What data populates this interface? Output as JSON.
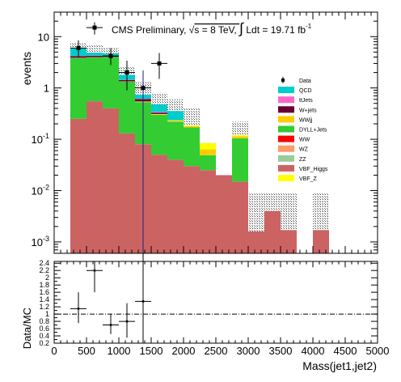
{
  "chart_data": [
    {
      "type": "bar",
      "stacked": true,
      "yscale": "log",
      "title": "CMS Preliminary, √s = 8 TeV, ∫ Ldt = 19.71 fb⁻¹",
      "title_parts": {
        "prefix": "CMS Preliminary, ",
        "sqrt": "√",
        "s_eq": "s = 8 TeV, ",
        "integral": "∫",
        "ldt": " Ldt = 19.71 fb",
        "exp": "-1"
      },
      "ylabel": "events",
      "xlim": [
        0,
        5000
      ],
      "ylim": [
        0.0006,
        30
      ],
      "y_ticks": [
        {
          "value": 0.001,
          "base": "10",
          "exp": "-3"
        },
        {
          "value": 0.01,
          "base": "10",
          "exp": "-2"
        },
        {
          "value": 0.1,
          "base": "10",
          "exp": "-1"
        },
        {
          "value": 1,
          "base": "1",
          "exp": ""
        },
        {
          "value": 10,
          "base": "10",
          "exp": ""
        }
      ],
      "bins": [
        [
          250,
          500
        ],
        [
          500,
          750
        ],
        [
          750,
          1000
        ],
        [
          1000,
          1250
        ],
        [
          1250,
          1500
        ],
        [
          1500,
          1750
        ],
        [
          1750,
          2000
        ],
        [
          2000,
          2250
        ],
        [
          2250,
          2500
        ],
        [
          2500,
          2750
        ],
        [
          2750,
          3000
        ],
        [
          3000,
          3250
        ],
        [
          3250,
          3500
        ],
        [
          3500,
          3750
        ],
        [
          3750,
          4000
        ],
        [
          4000,
          4250
        ]
      ],
      "series": [
        {
          "name": "VBF_Higgs",
          "color": "#cc6363",
          "values": [
            0.25,
            0.55,
            0.4,
            0.13,
            0.08,
            0.05,
            0.04,
            0.03,
            0.025,
            0.02,
            0.015,
            0.0016,
            0.004,
            0.0017,
            0,
            0.0017
          ]
        },
        {
          "name": "DYLL+Jets",
          "color": "#33cc33",
          "values": [
            3.6,
            3.4,
            3.6,
            1.2,
            0.45,
            0.25,
            0.18,
            0.14,
            0.024,
            0.0,
            0.09,
            0,
            0,
            0,
            0,
            0
          ]
        },
        {
          "name": "WWjj",
          "color": "#ffcc00",
          "values": [
            0.02,
            0.02,
            0.02,
            0.01,
            0.01,
            0.005,
            0.01,
            0.01,
            0.015,
            0,
            0.01,
            0,
            0,
            0,
            0,
            0
          ]
        },
        {
          "name": "VBF_Z",
          "color": "#ffff00",
          "values": [
            0.01,
            0.01,
            0.01,
            0.005,
            0.005,
            0.005,
            0.005,
            0.005,
            0.02,
            0,
            0.005,
            0,
            0,
            0,
            0,
            0
          ]
        },
        {
          "name": "W+jets",
          "color": "#660033",
          "values": [
            0.3,
            0.25,
            0.15,
            0.08,
            0.06,
            0.02,
            0,
            0,
            0,
            0,
            0,
            0,
            0,
            0,
            0,
            0
          ]
        },
        {
          "name": "ttJets",
          "color": "#ff66cc",
          "values": [
            0.05,
            0.05,
            0.03,
            0.02,
            0.01,
            0.01,
            0,
            0,
            0,
            0,
            0,
            0,
            0,
            0,
            0,
            0
          ]
        },
        {
          "name": "QCD",
          "color": "#00cccc",
          "values": [
            1.8,
            0.6,
            0.5,
            0.35,
            0.12,
            0.14,
            0.12,
            0.0,
            0,
            0,
            0,
            0,
            0,
            0,
            0,
            0
          ]
        },
        {
          "name": "WW",
          "color": "#ff0000",
          "values": [
            0,
            0,
            0,
            0,
            0,
            0,
            0,
            0,
            0,
            0,
            0,
            0,
            0,
            0,
            0,
            0
          ]
        },
        {
          "name": "WZ",
          "color": "#ff9966",
          "values": [
            0,
            0,
            0,
            0,
            0,
            0,
            0,
            0,
            0,
            0,
            0,
            0,
            0,
            0,
            0,
            0
          ]
        },
        {
          "name": "ZZ",
          "color": "#99cc99",
          "values": [
            0,
            0,
            0,
            0,
            0,
            0,
            0,
            0,
            0,
            0,
            0,
            0,
            0,
            0,
            0,
            0
          ]
        }
      ],
      "unc_band_top": [
        7.5,
        6.8,
        6.0,
        2.6,
        1.3,
        0.8,
        0.6,
        0.4,
        0.085,
        0,
        0.22,
        0.009,
        0.009,
        0.009,
        0,
        0.009
      ],
      "data_points": [
        {
          "x": 375,
          "xerr": 125,
          "y": 6.0,
          "ylo": 4.0,
          "yhi": 8.5
        },
        {
          "x": 625,
          "xerr": 125,
          "y": 15.0,
          "ylo": 11.0,
          "yhi": 19.0
        },
        {
          "x": 875,
          "xerr": 125,
          "y": 4.2,
          "ylo": 2.8,
          "yhi": 6.0
        },
        {
          "x": 1125,
          "xerr": 125,
          "y": 2.0,
          "ylo": 0.9,
          "yhi": 3.4
        },
        {
          "x": 1375,
          "xerr": 125,
          "y": 1.0,
          "ylo": 0.0006,
          "yhi": 2.2
        },
        {
          "x": 1625,
          "xerr": 125,
          "y": 3.0,
          "ylo": 1.5,
          "yhi": 4.8
        }
      ],
      "legend": {
        "placement": "right",
        "entries": [
          {
            "label": "Data",
            "kind": "marker"
          },
          {
            "label": "QCD",
            "color": "#00cccc"
          },
          {
            "label": "ttJets",
            "color": "#ff66cc"
          },
          {
            "label": "W+jets",
            "color": "#660033"
          },
          {
            "label": "WWjj",
            "color": "#ffcc00"
          },
          {
            "label": "DYLL+Jets",
            "color": "#33cc33"
          },
          {
            "label": "WW",
            "color": "#ff0000"
          },
          {
            "label": "WZ",
            "color": "#ff9966"
          },
          {
            "label": "ZZ",
            "color": "#99cc99"
          },
          {
            "label": "VBF_Higgs",
            "color": "#cc6363"
          },
          {
            "label": "VBF_Z",
            "color": "#ffff00"
          }
        ]
      }
    },
    {
      "type": "scatter",
      "ylabel": "Data/MC",
      "xlabel": "Mass(jet1,jet2)",
      "xlim": [
        0,
        5000
      ],
      "ylim": [
        0.2,
        2.45
      ],
      "x_ticks": [
        "0",
        "500",
        "1000",
        "1500",
        "2000",
        "2500",
        "3000",
        "3500",
        "4000",
        "4500",
        "5000"
      ],
      "y_ticks": [
        "0.2",
        "0.4",
        "0.6",
        "0.8",
        "1",
        "1.2",
        "1.4",
        "1.6",
        "1.8",
        "2",
        "2.2",
        "2.4"
      ],
      "reference_line": 1.0,
      "points": [
        {
          "x": 375,
          "xerr": 125,
          "y": 1.15,
          "ylo": 0.75,
          "yhi": 1.6
        },
        {
          "x": 625,
          "xerr": 125,
          "y": 2.2,
          "ylo": 1.6,
          "yhi": 2.45
        },
        {
          "x": 875,
          "xerr": 125,
          "y": 0.7,
          "ylo": 0.45,
          "yhi": 1.0
        },
        {
          "x": 1125,
          "xerr": 125,
          "y": 0.8,
          "ylo": 0.35,
          "yhi": 1.3
        },
        {
          "x": 1375,
          "xerr": 125,
          "y": 1.35,
          "ylo": 0.2,
          "yhi": 2.45
        }
      ]
    }
  ]
}
